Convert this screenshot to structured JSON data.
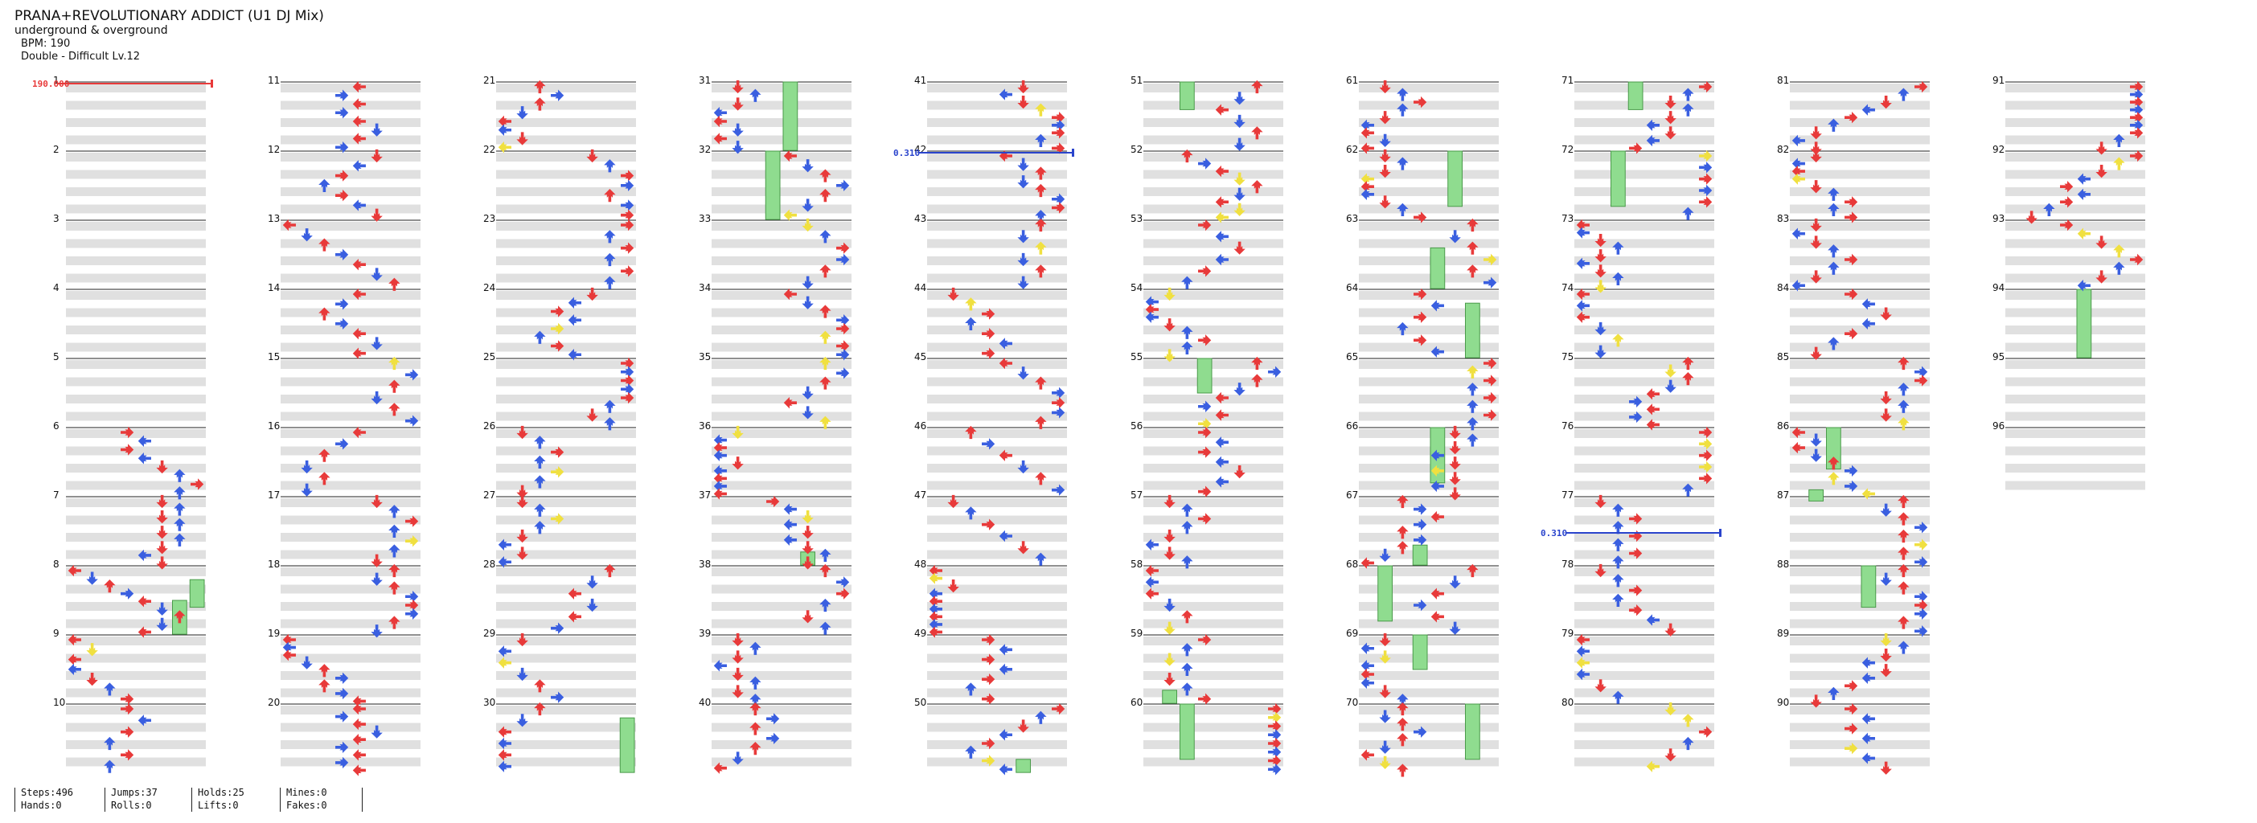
{
  "song": {
    "title": "PRANA+REVOLUTIONARY ADDICT (U1 DJ Mix)",
    "artist": "underground & overground",
    "bpm_label": "BPM: 190",
    "difficulty_label": "Double - Difficult Lv.12"
  },
  "colors": {
    "red": "#e83a3a",
    "blue": "#3a5fe0",
    "yellow": "#f0e040",
    "green": "#8fdc8f",
    "band": "#e0e0e0"
  },
  "markers": [
    {
      "measure": 1,
      "label": "190.000",
      "color": "#e83a3a"
    },
    {
      "measure": 42,
      "label": "0.310",
      "color": "#2a44cc"
    },
    {
      "measure": 77.5,
      "label": "0.310",
      "color": "#2a44cc"
    }
  ],
  "measures": [
    "1",
    "2",
    "3",
    "4",
    "5",
    "6",
    "7",
    "8",
    "9",
    "10",
    "11",
    "12",
    "13",
    "14",
    "15",
    "16",
    "17",
    "18",
    "19",
    "20",
    "21",
    "22",
    "23",
    "24",
    "25",
    "26",
    "27",
    "28",
    "29",
    "30",
    "31",
    "32",
    "33",
    "34",
    "35",
    "36",
    "37",
    "38",
    "39",
    "40",
    "41",
    "42",
    "43",
    "44",
    "45",
    "46",
    "47",
    "48",
    "49",
    "50",
    "51",
    "52",
    "53",
    "54",
    "55",
    "56",
    "57",
    "58",
    "59",
    "60",
    "61",
    "62",
    "63",
    "64",
    "65",
    "66",
    "67",
    "68",
    "69",
    "70",
    "71",
    "72",
    "73",
    "74",
    "75",
    "76",
    "77",
    "78",
    "79",
    "80",
    "81",
    "82",
    "83",
    "84",
    "85",
    "86",
    "87",
    "88",
    "89",
    "90",
    "91",
    "92",
    "93",
    "94",
    "95",
    "96"
  ],
  "stats": [
    [
      "Steps:496",
      "Hands:0"
    ],
    [
      "Jumps:37",
      "Rolls:0"
    ],
    [
      "Holds:25",
      "Lifts:0"
    ],
    [
      "Mines:0",
      "Fakes:0"
    ]
  ],
  "holds": [
    [
      8.2,
      8.6,
      7
    ],
    [
      8.5,
      9.1,
      6
    ],
    [
      31,
      32,
      4
    ],
    [
      32,
      33.2,
      3
    ],
    [
      37.8,
      38.3,
      5
    ],
    [
      51,
      51.4,
      2
    ],
    [
      55,
      55.5,
      3
    ],
    [
      59.8,
      60.2,
      1
    ],
    [
      60,
      60.8,
      2
    ],
    [
      62,
      62.8,
      5
    ],
    [
      63.4,
      64,
      4
    ],
    [
      64.2,
      65,
      6
    ],
    [
      66,
      66.8,
      4
    ],
    [
      67.7,
      68.3,
      3
    ],
    [
      68,
      68.8,
      1
    ],
    [
      69,
      69.5,
      3
    ],
    [
      70,
      70.8,
      6
    ],
    [
      71,
      71.4,
      3
    ],
    [
      72,
      72.8,
      2
    ],
    [
      86,
      86.6,
      2
    ],
    [
      86.9,
      87.5,
      1
    ],
    [
      88,
      88.6,
      4
    ],
    [
      94,
      96.2,
      4
    ],
    [
      30.2,
      31,
      7
    ],
    [
      50.8,
      51,
      5
    ]
  ]
}
